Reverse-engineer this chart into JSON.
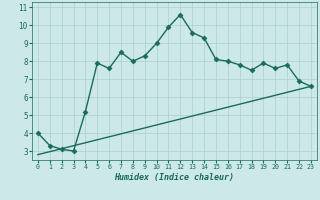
{
  "xlabel": "Humidex (Indice chaleur)",
  "line1_x": [
    0,
    1,
    2,
    3,
    4,
    5,
    6,
    7,
    8,
    9,
    10,
    11,
    12,
    13,
    14,
    15,
    16,
    17,
    18,
    19,
    20,
    21,
    22,
    23
  ],
  "line1_y": [
    4.0,
    3.3,
    3.1,
    3.0,
    5.2,
    7.9,
    7.6,
    8.5,
    8.0,
    8.3,
    9.0,
    9.9,
    10.6,
    9.6,
    9.3,
    8.1,
    8.0,
    7.8,
    7.5,
    7.9,
    7.6,
    7.8,
    6.9,
    6.6
  ],
  "line2_x": [
    0,
    23
  ],
  "line2_y": [
    2.8,
    6.6
  ],
  "line_color": "#1a6b5a",
  "bg_color": "#cce8e8",
  "grid_color": "#aacfcf",
  "text_color": "#1a6b5a",
  "xlim": [
    -0.5,
    23.5
  ],
  "ylim": [
    2.5,
    11.3
  ],
  "yticks": [
    3,
    4,
    5,
    6,
    7,
    8,
    9,
    10,
    11
  ],
  "xticks": [
    0,
    1,
    2,
    3,
    4,
    5,
    6,
    7,
    8,
    9,
    10,
    11,
    12,
    13,
    14,
    15,
    16,
    17,
    18,
    19,
    20,
    21,
    22,
    23
  ],
  "marker": "D",
  "marker_size": 2.5,
  "linewidth": 1.0
}
